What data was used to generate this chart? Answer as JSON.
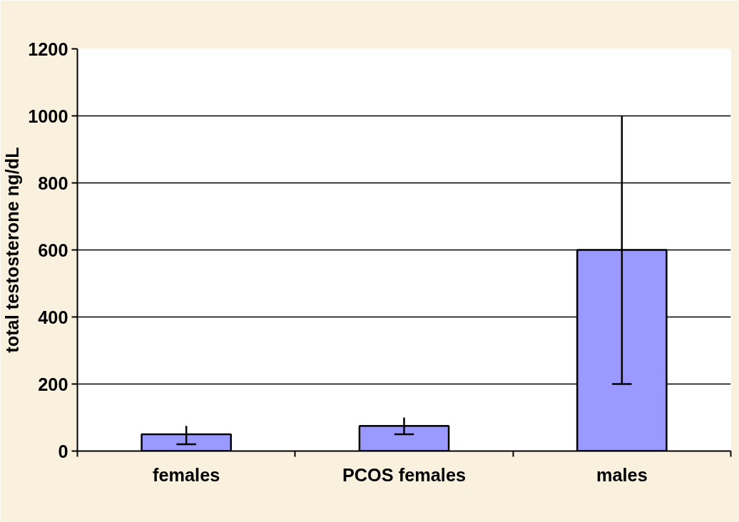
{
  "chart_data": {
    "type": "bar",
    "ylabel": "total testosterone ng/dL",
    "categories": [
      "females",
      "PCOS females",
      "males"
    ],
    "values": [
      50,
      75,
      600
    ],
    "errors": [
      [
        20,
        75
      ],
      [
        50,
        100
      ],
      [
        200,
        1000
      ]
    ],
    "color": "#9999ff",
    "ylim": [
      0,
      1200
    ],
    "yticks": [
      0,
      200,
      400,
      600,
      800,
      1000,
      1200
    ],
    "grid": "y"
  }
}
